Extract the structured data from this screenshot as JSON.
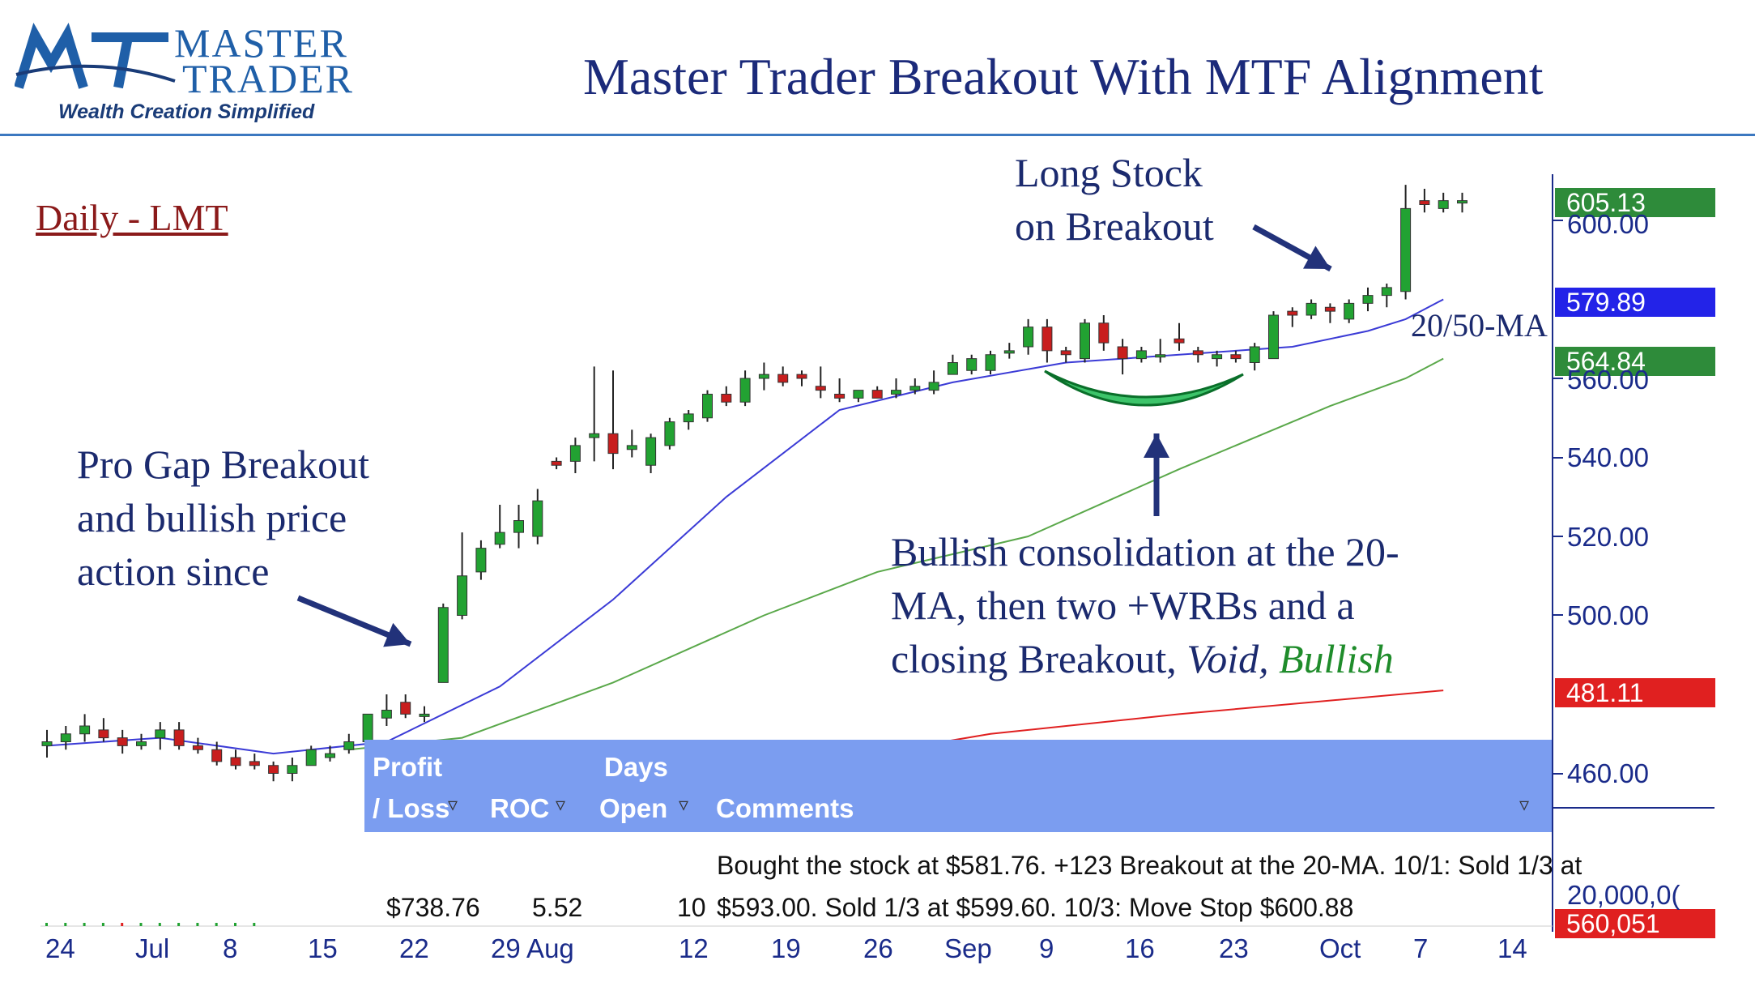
{
  "logo": {
    "line1": "MASTER",
    "line2": "TRADER",
    "tagline": "Wealth Creation Simplified",
    "mark": "MT"
  },
  "title": "Master Trader Breakout With MTF Alignment",
  "timeframe": "Daily - LMT",
  "annotations": {
    "gap": [
      "Pro Gap Breakout",
      "and bullish price",
      "action since"
    ],
    "long": [
      "Long Stock",
      "on Breakout"
    ],
    "consolidation": {
      "line1": "Bullish consolidation at the 20-",
      "line2": "MA, then two +WRBs and a",
      "line3a": "closing Breakout, ",
      "void": "Void,",
      "bullish": " Bullish"
    },
    "ma": "20/50-MA"
  },
  "price_badges": {
    "last": {
      "label": "605.13",
      "color": "#2e8b3a"
    },
    "ma20": {
      "label": "579.89",
      "color": "#2323e8"
    },
    "ma50": {
      "label": "564.84",
      "color": "#2e8b3a"
    },
    "ma200": {
      "label": "481.11",
      "color": "#e02020"
    },
    "volume": {
      "label": "560,051",
      "color": "#e02020"
    }
  },
  "y_axis_labels": [
    "600.00",
    "560.00",
    "540.00",
    "520.00",
    "500.00",
    "460.00"
  ],
  "volume_axis_label": "20,000,0(",
  "x_axis_labels": [
    "24",
    "Jul",
    "8",
    "15",
    "22",
    "29 Aug",
    "12",
    "19",
    "26",
    "Sep",
    "9",
    "16",
    "23",
    "Oct",
    "7",
    "14"
  ],
  "table": {
    "headers": {
      "pl_line1": "Profit",
      "pl_line2": "/ Loss",
      "roc": "ROC",
      "days_line1": "Days",
      "days_line2": "Open",
      "comments": "Comments"
    },
    "row": {
      "pl": "$738.76",
      "roc": "5.52",
      "days": "10",
      "comment_line1": "Bought the stock at $581.76. +123 Breakout at the 20-MA.  10/1:  Sold 1/3 at",
      "comment_line2": "$593.00.  Sold 1/3 at $599.60.  10/3:  Move Stop $600.88"
    }
  },
  "colors": {
    "up": "#22a232",
    "down": "#c81e1e",
    "ma20": "#3b3bd6",
    "ma50": "#5aa84a",
    "ma200": "#e02020",
    "axis": "#1a2b8a"
  },
  "chart_data": {
    "type": "candlestick",
    "title": "Master Trader Breakout With MTF Alignment",
    "ylim": [
      455,
      615
    ],
    "candles": [
      {
        "o": 467,
        "h": 471,
        "l": 464,
        "c": 468
      },
      {
        "o": 468,
        "h": 472,
        "l": 466,
        "c": 470
      },
      {
        "o": 470,
        "h": 475,
        "l": 468,
        "c": 472
      },
      {
        "o": 471,
        "h": 474,
        "l": 468,
        "c": 469
      },
      {
        "o": 469,
        "h": 471,
        "l": 465,
        "c": 467
      },
      {
        "o": 467,
        "h": 470,
        "l": 466,
        "c": 468
      },
      {
        "o": 469,
        "h": 473,
        "l": 466,
        "c": 471
      },
      {
        "o": 471,
        "h": 473,
        "l": 466,
        "c": 467
      },
      {
        "o": 467,
        "h": 469,
        "l": 465,
        "c": 466
      },
      {
        "o": 466,
        "h": 468,
        "l": 462,
        "c": 463
      },
      {
        "o": 464,
        "h": 466,
        "l": 461,
        "c": 462
      },
      {
        "o": 463,
        "h": 465,
        "l": 461,
        "c": 462
      },
      {
        "o": 462,
        "h": 463,
        "l": 458,
        "c": 460
      },
      {
        "o": 460,
        "h": 464,
        "l": 458,
        "c": 462
      },
      {
        "o": 462,
        "h": 467,
        "l": 462,
        "c": 466
      },
      {
        "o": 464,
        "h": 467,
        "l": 463,
        "c": 465
      },
      {
        "o": 466,
        "h": 470,
        "l": 465,
        "c": 468
      },
      {
        "o": 468,
        "h": 475,
        "l": 468,
        "c": 475
      },
      {
        "o": 474,
        "h": 480,
        "l": 472,
        "c": 476
      },
      {
        "o": 478,
        "h": 480,
        "l": 474,
        "c": 475
      },
      {
        "o": 475,
        "h": 477,
        "l": 473,
        "c": 475
      },
      {
        "o": 483,
        "h": 503,
        "l": 483,
        "c": 502
      },
      {
        "o": 500,
        "h": 521,
        "l": 499,
        "c": 510
      },
      {
        "o": 511,
        "h": 519,
        "l": 509,
        "c": 517
      },
      {
        "o": 518,
        "h": 528,
        "l": 517,
        "c": 521
      },
      {
        "o": 521,
        "h": 528,
        "l": 517,
        "c": 524
      },
      {
        "o": 520,
        "h": 532,
        "l": 518,
        "c": 529
      },
      {
        "o": 539,
        "h": 540,
        "l": 537,
        "c": 538
      },
      {
        "o": 539,
        "h": 545,
        "l": 536,
        "c": 543
      },
      {
        "o": 545,
        "h": 563,
        "l": 539,
        "c": 546
      },
      {
        "o": 546,
        "h": 562,
        "l": 537,
        "c": 541
      },
      {
        "o": 542,
        "h": 547,
        "l": 540,
        "c": 543
      },
      {
        "o": 538,
        "h": 546,
        "l": 536,
        "c": 545
      },
      {
        "o": 543,
        "h": 550,
        "l": 542,
        "c": 549
      },
      {
        "o": 549,
        "h": 552,
        "l": 547,
        "c": 551
      },
      {
        "o": 550,
        "h": 557,
        "l": 549,
        "c": 556
      },
      {
        "o": 556,
        "h": 558,
        "l": 553,
        "c": 554
      },
      {
        "o": 554,
        "h": 562,
        "l": 553,
        "c": 560
      },
      {
        "o": 560,
        "h": 564,
        "l": 557,
        "c": 561
      },
      {
        "o": 561,
        "h": 563,
        "l": 558,
        "c": 559
      },
      {
        "o": 561,
        "h": 562,
        "l": 558,
        "c": 560
      },
      {
        "o": 558,
        "h": 563,
        "l": 555,
        "c": 557
      },
      {
        "o": 556,
        "h": 560,
        "l": 554,
        "c": 555
      },
      {
        "o": 555,
        "h": 557,
        "l": 554,
        "c": 557
      },
      {
        "o": 557,
        "h": 558,
        "l": 555,
        "c": 555
      },
      {
        "o": 556,
        "h": 560,
        "l": 555,
        "c": 557
      },
      {
        "o": 557,
        "h": 560,
        "l": 556,
        "c": 558
      },
      {
        "o": 557,
        "h": 562,
        "l": 556,
        "c": 559
      },
      {
        "o": 561,
        "h": 566,
        "l": 561,
        "c": 564
      },
      {
        "o": 562,
        "h": 566,
        "l": 561,
        "c": 565
      },
      {
        "o": 562,
        "h": 567,
        "l": 561,
        "c": 566
      },
      {
        "o": 567,
        "h": 569,
        "l": 565,
        "c": 567
      },
      {
        "o": 568,
        "h": 575,
        "l": 566,
        "c": 573
      },
      {
        "o": 573,
        "h": 575,
        "l": 564,
        "c": 567
      },
      {
        "o": 567,
        "h": 568,
        "l": 564,
        "c": 566
      },
      {
        "o": 565,
        "h": 575,
        "l": 564,
        "c": 574
      },
      {
        "o": 574,
        "h": 576,
        "l": 567,
        "c": 569
      },
      {
        "o": 568,
        "h": 570,
        "l": 561,
        "c": 565
      },
      {
        "o": 565,
        "h": 568,
        "l": 564,
        "c": 567
      },
      {
        "o": 566,
        "h": 570,
        "l": 564,
        "c": 566
      },
      {
        "o": 570,
        "h": 574,
        "l": 567,
        "c": 569
      },
      {
        "o": 567,
        "h": 568,
        "l": 564,
        "c": 566
      },
      {
        "o": 565,
        "h": 567,
        "l": 563,
        "c": 566
      },
      {
        "o": 566,
        "h": 567,
        "l": 564,
        "c": 565
      },
      {
        "o": 564,
        "h": 569,
        "l": 562,
        "c": 568
      },
      {
        "o": 565,
        "h": 577,
        "l": 565,
        "c": 576
      },
      {
        "o": 577,
        "h": 578,
        "l": 573,
        "c": 576
      },
      {
        "o": 576,
        "h": 580,
        "l": 575,
        "c": 579
      },
      {
        "o": 578,
        "h": 579,
        "l": 574,
        "c": 577
      },
      {
        "o": 575,
        "h": 580,
        "l": 574,
        "c": 579
      },
      {
        "o": 579,
        "h": 583,
        "l": 577,
        "c": 581
      },
      {
        "o": 581,
        "h": 584,
        "l": 578,
        "c": 583
      },
      {
        "o": 582,
        "h": 609,
        "l": 580,
        "c": 603
      },
      {
        "o": 605,
        "h": 608,
        "l": 602,
        "c": 604
      },
      {
        "o": 603,
        "h": 607,
        "l": 602,
        "c": 605
      },
      {
        "o": 605,
        "h": 607,
        "l": 602,
        "c": 605
      }
    ],
    "ma20": [
      [
        0,
        467
      ],
      [
        6,
        469
      ],
      [
        12,
        465
      ],
      [
        18,
        468
      ],
      [
        24,
        482
      ],
      [
        30,
        504
      ],
      [
        36,
        530
      ],
      [
        42,
        552
      ],
      [
        48,
        559
      ],
      [
        54,
        564
      ],
      [
        60,
        566
      ],
      [
        66,
        568
      ],
      [
        70,
        572
      ],
      [
        72,
        575
      ],
      [
        74,
        580
      ]
    ],
    "ma50": [
      [
        16,
        466
      ],
      [
        22,
        469
      ],
      [
        30,
        483
      ],
      [
        38,
        500
      ],
      [
        44,
        511
      ],
      [
        52,
        520
      ],
      [
        60,
        537
      ],
      [
        68,
        553
      ],
      [
        72,
        560
      ],
      [
        74,
        565
      ]
    ],
    "ma200": [
      [
        40,
        462
      ],
      [
        50,
        470
      ],
      [
        60,
        475
      ],
      [
        74,
        481
      ]
    ],
    "x_tick_labels": [
      "24",
      "Jul",
      "8",
      "15",
      "22",
      "29 Aug",
      "12",
      "19",
      "26",
      "Sep",
      "9",
      "16",
      "23",
      "Oct",
      "7",
      "14"
    ],
    "y_tick_labels": [
      "600.00",
      "560.00",
      "540.00",
      "520.00",
      "500.00",
      "460.00"
    ]
  }
}
